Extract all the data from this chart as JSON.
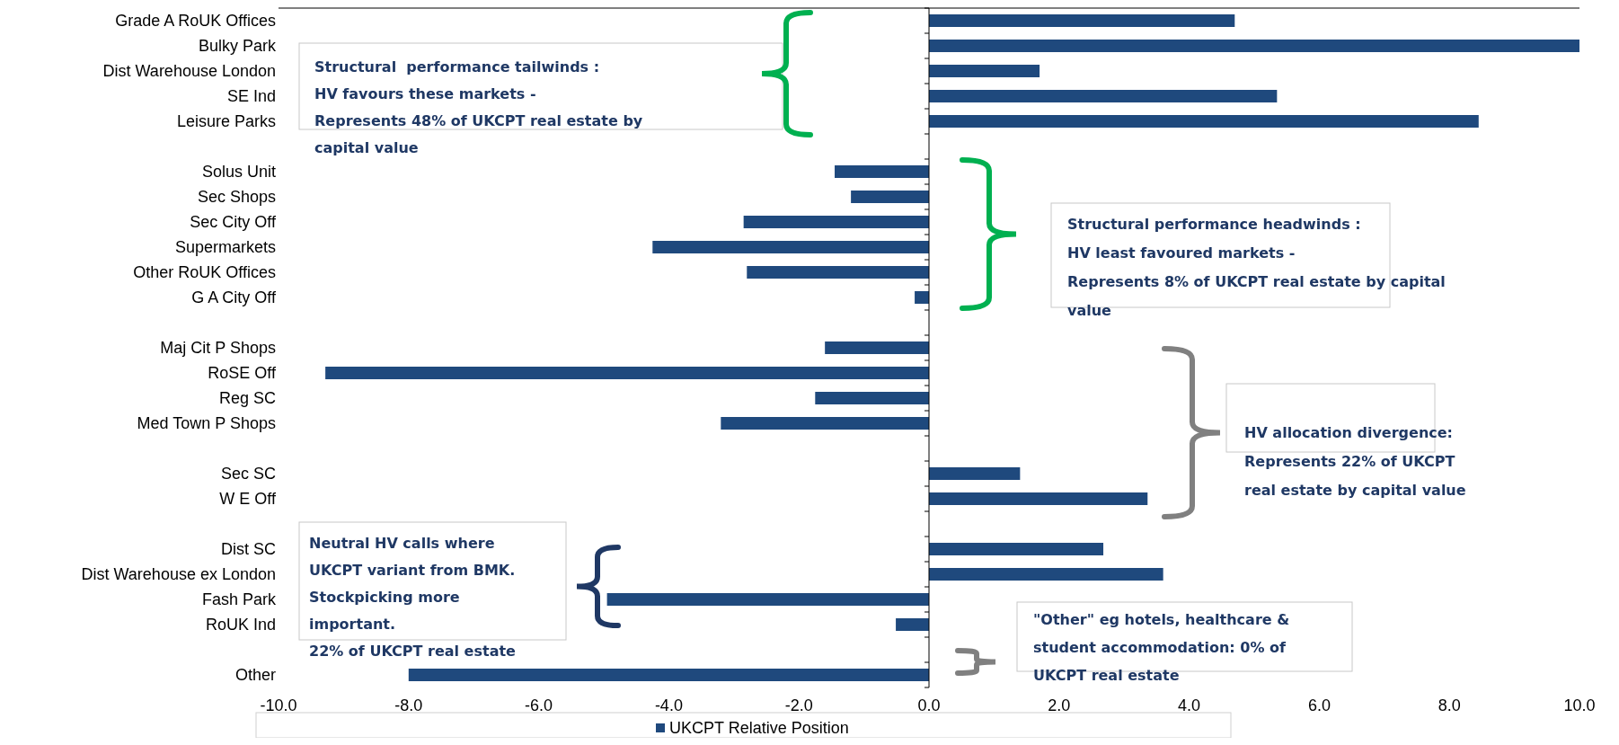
{
  "chart_data": {
    "type": "bar",
    "orientation": "horizontal",
    "categories": [
      "Grade A RoUK Offices",
      "Bulky Park",
      "Dist Warehouse London",
      "SE Ind",
      "Leisure Parks",
      null,
      "Solus Unit",
      "Sec Shops",
      "Sec City Off",
      "Supermarkets",
      "Other RoUK Offices",
      "G A City Off",
      null,
      "Maj Cit P Shops",
      "RoSE Off",
      "Reg SC",
      "Med Town P Shops",
      null,
      "Sec SC",
      "W E Off",
      null,
      "Dist SC",
      "Dist Warehouse ex London",
      "Fash Park",
      "RoUK Ind",
      null,
      "Other"
    ],
    "series": [
      {
        "name": "UKCPT Relative Position",
        "color": "#1f497d",
        "values": [
          4.7,
          10.0,
          1.7,
          5.35,
          8.45,
          null,
          -1.45,
          -1.2,
          -2.85,
          -4.25,
          -2.8,
          -0.22,
          null,
          -1.6,
          -9.28,
          -1.75,
          -3.2,
          null,
          1.4,
          3.36,
          null,
          2.68,
          3.6,
          -4.95,
          -0.51,
          null,
          -8.0
        ]
      }
    ],
    "xlim": [
      -10,
      10
    ],
    "xticks": [
      {
        "value": -10,
        "label": "-10.0"
      },
      {
        "value": -8,
        "label": "-8.0"
      },
      {
        "value": -6,
        "label": "-6.0"
      },
      {
        "value": -4,
        "label": "-4.0"
      },
      {
        "value": -2,
        "label": "-2.0"
      },
      {
        "value": 0,
        "label": "0.0"
      },
      {
        "value": 2,
        "label": "2.0"
      },
      {
        "value": 4,
        "label": "4.0"
      },
      {
        "value": 6,
        "label": "6.0"
      },
      {
        "value": 8,
        "label": "8.0"
      },
      {
        "value": 10,
        "label": "10.0"
      }
    ],
    "legend": "bottom",
    "annotations": [
      "Structural  performance tailwinds :\nHV favours these markets -\nRepresents 48% of UKCPT real estate by\ncapital value",
      "Structural performance headwinds :\nHV least favoured markets -\nRepresents 8% of UKCPT real estate by capital\nvalue",
      "HV allocation divergence:\nRepresents 22% of UKCPT\nreal estate by capital value",
      "Neutral HV calls where\nUKCPT variant from BMK.\nStockpicking more\nimportant.\n22% of UKCPT real estate",
      "\"Other\" eg hotels, healthcare &\nstudent accommodation: 0% of\nUKCPT real estate"
    ]
  }
}
